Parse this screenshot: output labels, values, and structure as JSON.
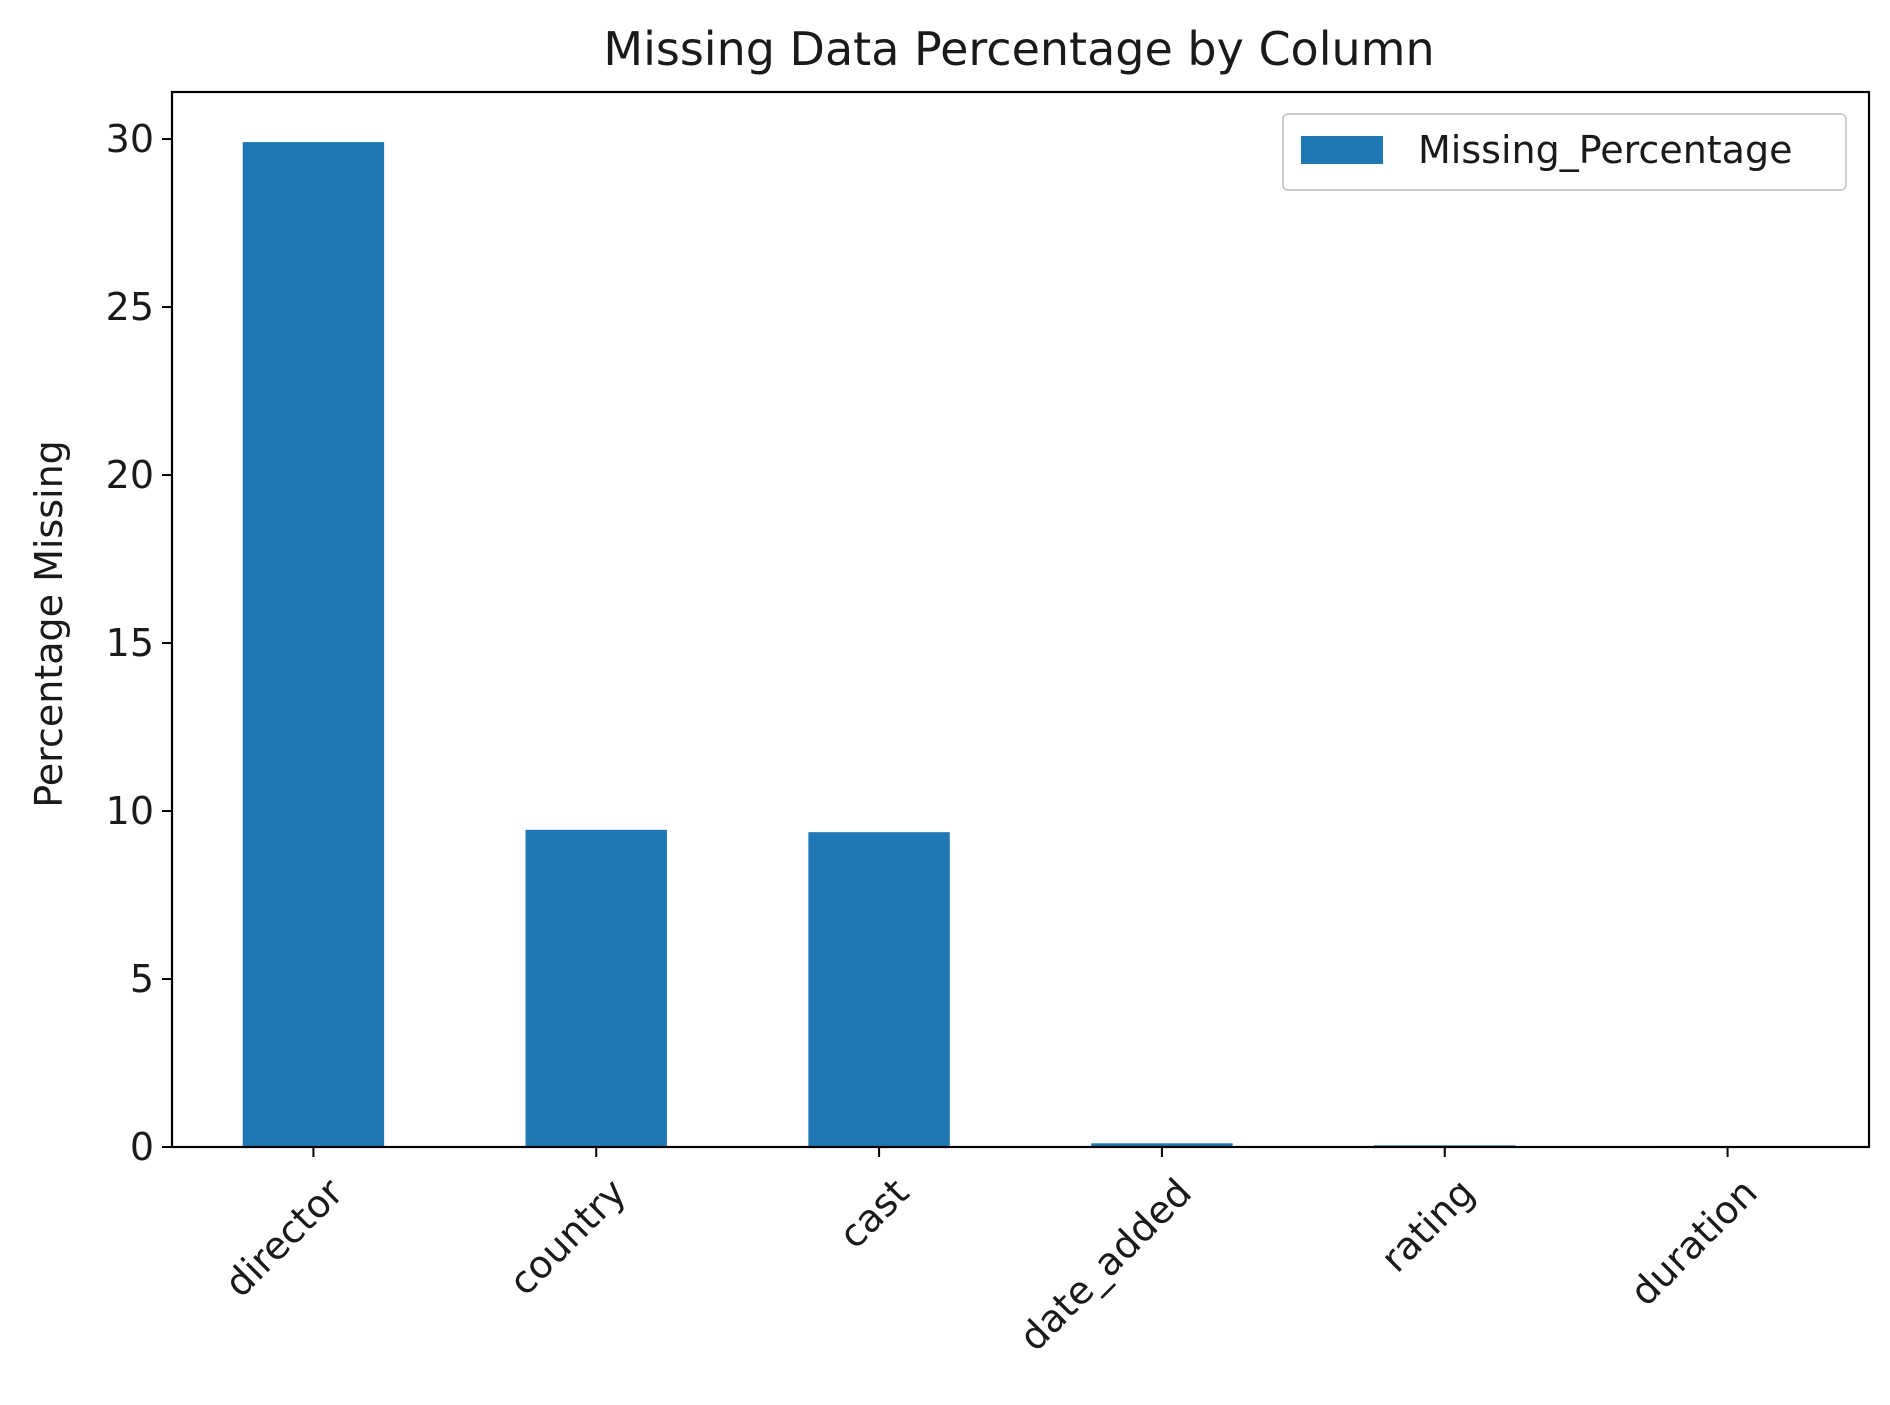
{
  "chart_data": {
    "type": "bar",
    "title": "Missing Data Percentage by Column",
    "xlabel": "",
    "ylabel": "Percentage Missing",
    "categories": [
      "director",
      "country",
      "cast",
      "date_added",
      "rating",
      "duration"
    ],
    "series": [
      {
        "name": "Missing_Percentage",
        "values": [
          29.91,
          9.44,
          9.37,
          0.11,
          0.05,
          0.03
        ],
        "color": "#1f77b4"
      }
    ],
    "ylim": [
      0,
      31.4
    ],
    "yticks": [
      0,
      5,
      10,
      15,
      20,
      25,
      30
    ],
    "grid": false,
    "legend_position": "top-right",
    "xtick_rotation": 45
  }
}
